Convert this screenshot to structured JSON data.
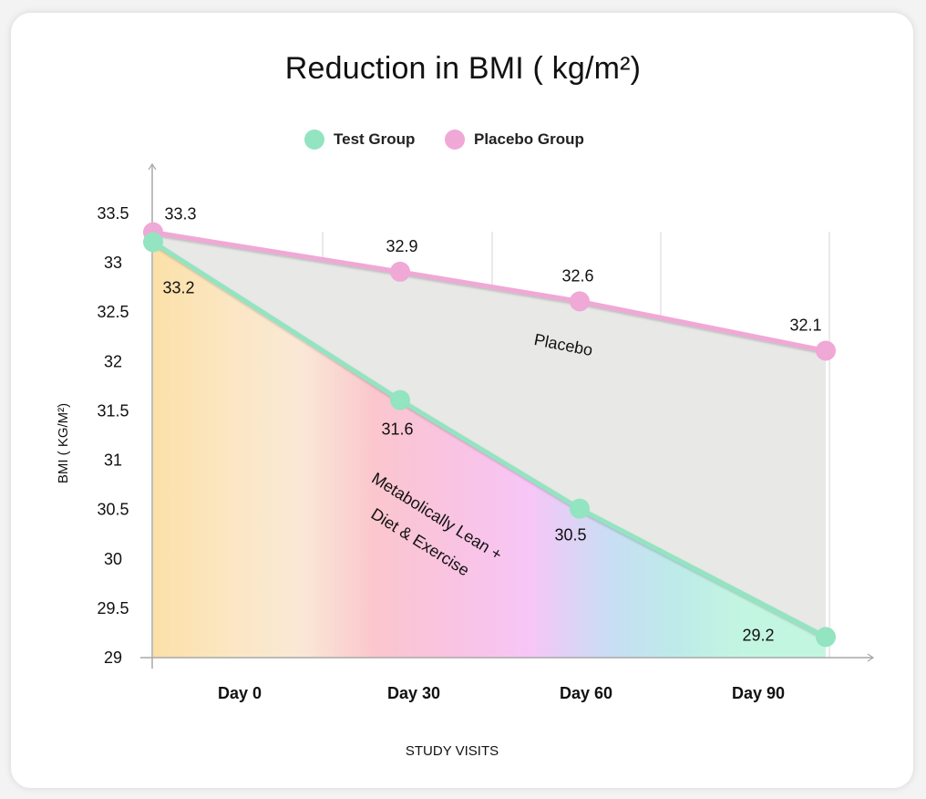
{
  "chart_data": {
    "type": "line",
    "title": "Reduction in BMI ( kg/m²)",
    "xlabel": "STUDY VISITS",
    "ylabel": "BMI ( KG/M²)",
    "categories": [
      "Day 0",
      "Day 30",
      "Day 60",
      "Day 90"
    ],
    "x_tick_labels": [
      "Day 0",
      "Day 30",
      "Day 60",
      "Day 90"
    ],
    "y_ticks": [
      29,
      29.5,
      30,
      30.5,
      31,
      31.5,
      32,
      32.5,
      33,
      33.5
    ],
    "y_tick_labels": [
      "29",
      "29.5",
      "30",
      "30.5",
      "31",
      "31.5",
      "32",
      "32.5",
      "33",
      "33.5"
    ],
    "ylim": [
      29,
      33.5
    ],
    "grid": "vertical",
    "legend_position": "top-center",
    "series": [
      {
        "name": "Test Group",
        "color": "#93e4c1",
        "values": [
          33.2,
          31.6,
          30.5,
          29.2
        ],
        "labels": [
          "33.2",
          "31.6",
          "30.5",
          "29.2"
        ]
      },
      {
        "name": "Placebo Group",
        "color": "#f0a8d6",
        "values": [
          33.3,
          32.9,
          32.6,
          32.1
        ],
        "labels": [
          "33.3",
          "32.9",
          "32.6",
          "32.1"
        ]
      }
    ],
    "annotations": {
      "placebo_region": "Placebo",
      "test_region_line1": "Metabolically Lean +",
      "test_region_line2": "Diet & Exercise"
    }
  }
}
